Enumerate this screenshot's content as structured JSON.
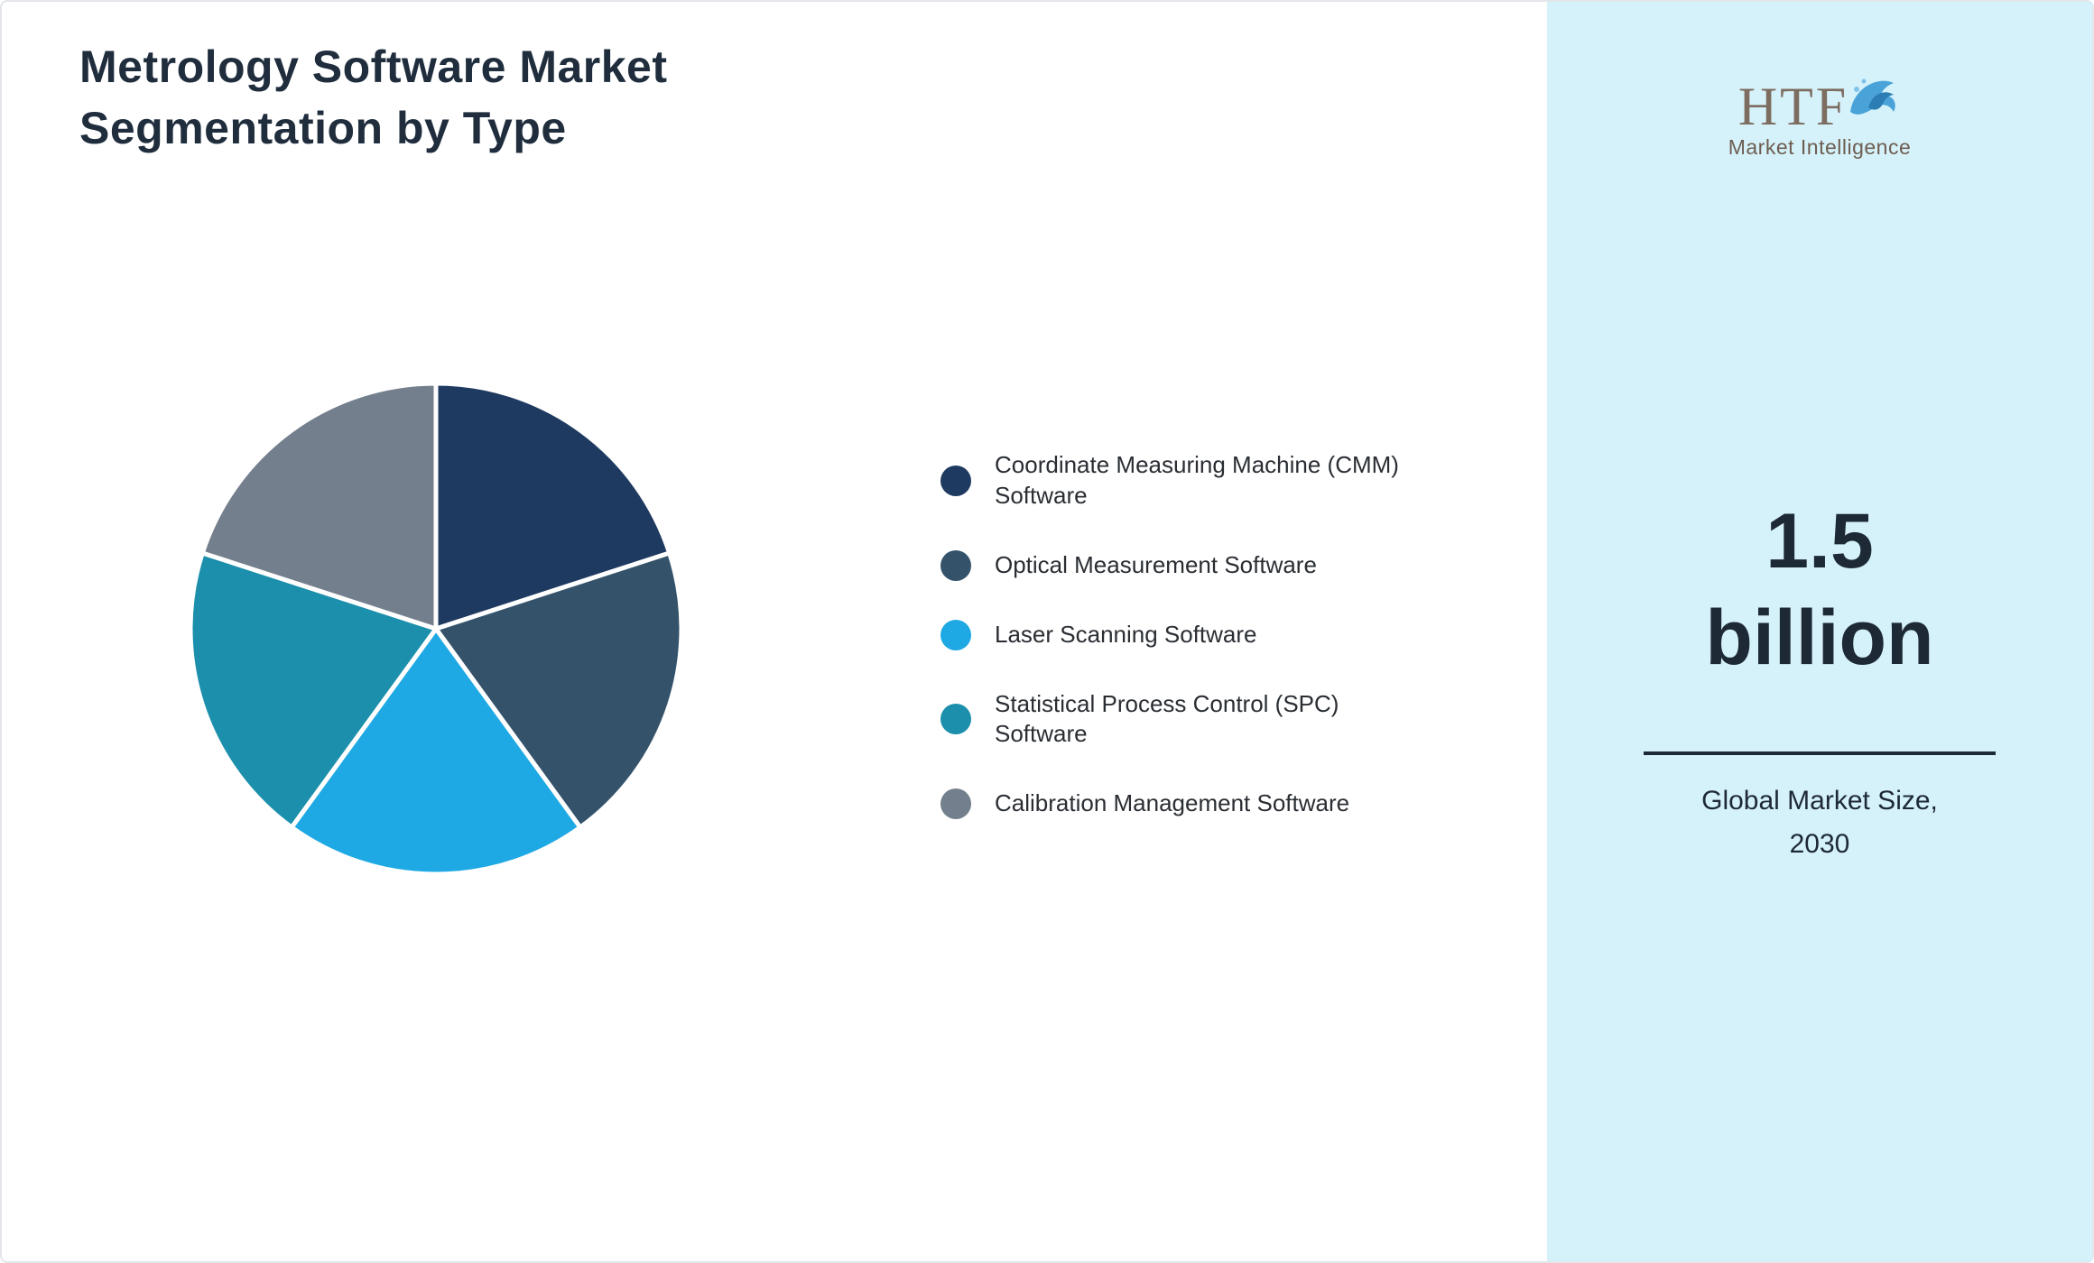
{
  "title": {
    "lines": [
      "Metrology Software Market",
      "Segmentation by Type"
    ]
  },
  "chart_data": {
    "type": "pie",
    "title": "Metrology Software Market Segmentation by Type",
    "unit": "%",
    "start_angle_deg": -90,
    "direction": "clockwise",
    "legend_position": "right",
    "segments": [
      {
        "label": "Coordinate Measuring Machine (CMM) Software",
        "value": 20,
        "color": "#1f3a60"
      },
      {
        "label": "Optical Measurement Software",
        "value": 20,
        "color": "#34536b"
      },
      {
        "label": "Laser Scanning Software",
        "value": 20,
        "color": "#1fa9e4"
      },
      {
        "label": "Statistical Process Control (SPC) Software",
        "value": 20,
        "color": "#1b8fab"
      },
      {
        "label": "Calibration Management Software",
        "value": 20,
        "color": "#747f8d"
      }
    ]
  },
  "sidebar": {
    "background": "#d5f2fa",
    "logo": {
      "text": "HTF",
      "subtext": "Market Intelligence",
      "dolphin_color": "#4aa3d8"
    },
    "value_line1": "1.5",
    "value_line2": "billion",
    "caption_line1": "Global Market Size,",
    "caption_line2": "2030"
  }
}
